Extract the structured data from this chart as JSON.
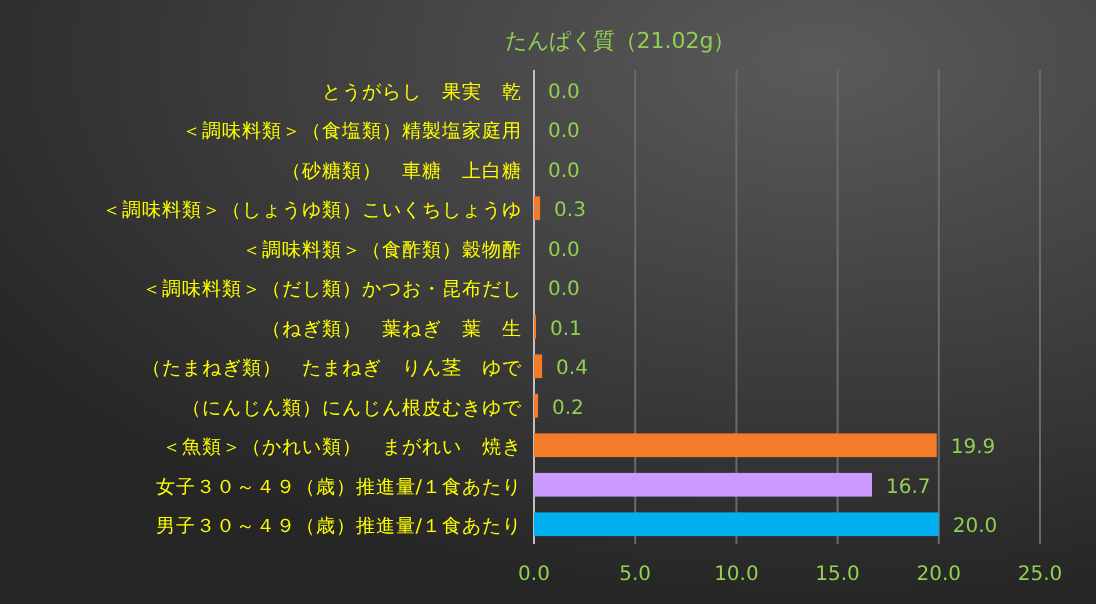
{
  "chart_data": {
    "type": "bar",
    "orientation": "horizontal",
    "title": "たんぱく質（21.02g）",
    "categories": [
      "とうがらし　果実　乾",
      "＜調味料類＞（食塩類）精製塩家庭用",
      "（砂糖類）　車糖　上白糖",
      "＜調味料類＞（しょうゆ類）こいくちしょうゆ",
      "＜調味料類＞（食酢類）穀物酢",
      "＜調味料類＞（だし類）かつお・昆布だし",
      "（ねぎ類）　葉ねぎ　葉　生",
      "（たまねぎ類）　たまねぎ　りん茎　ゆで",
      "（にんじん類）にんじん根皮むきゆで",
      "＜魚類＞（かれい類）　まがれい　焼き",
      "女子３０～４９（歳）推進量/１食あたり",
      "男子３０～４９（歳）推進量/１食あたり"
    ],
    "values": [
      0,
      0,
      0,
      0.3,
      0,
      0,
      0.1,
      0.4,
      0.2,
      19.9,
      16.7,
      20
    ],
    "value_labels": [
      "0.0",
      "0.0",
      "0.0",
      "0.3",
      "0.0",
      "0.0",
      "0.1",
      "0.4",
      "0.2",
      "19.9",
      "16.7",
      "20.0"
    ],
    "colors": [
      "#f47b2a",
      "#f47b2a",
      "#f47b2a",
      "#f47b2a",
      "#f47b2a",
      "#f47b2a",
      "#f47b2a",
      "#f47b2a",
      "#f47b2a",
      "#f47b2a",
      "#cc99ff",
      "#00b0f0"
    ],
    "xlim": [
      0,
      25
    ],
    "xticks": [
      {
        "value": 0,
        "label": "0.0"
      },
      {
        "value": 5,
        "label": "5.0"
      },
      {
        "value": 10,
        "label": "10.0"
      },
      {
        "value": 15,
        "label": "15.0"
      },
      {
        "value": 20,
        "label": "20.0"
      },
      {
        "value": 25,
        "label": "25.0"
      }
    ],
    "grid": "x"
  }
}
